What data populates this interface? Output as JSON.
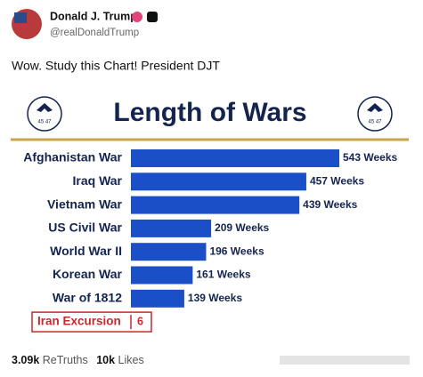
{
  "post": {
    "author": "Donald J. Trump",
    "handle": "@realDonaldTrump",
    "text": "Wow. Study this Chart! President DJT",
    "retruths_count": "3.09k",
    "retruths_label": "ReTruths",
    "likes_count": "10k",
    "likes_label": "Likes"
  },
  "seal_label": "45 47",
  "chart_data": {
    "type": "hbar",
    "title": "Length of Wars",
    "categories": [
      "Afghanistan War",
      "Iraq War",
      "Vietnam War",
      "US Civil War",
      "World War II",
      "Korean War",
      "War of 1812",
      "Iran Excursion"
    ],
    "values": [
      543,
      457,
      439,
      209,
      196,
      161,
      139,
      6
    ],
    "value_labels": [
      "543 Weeks",
      "457 Weeks",
      "439 Weeks",
      "209 Weeks",
      "196 Weeks",
      "161 Weeks",
      "139 Weeks",
      "6"
    ],
    "color": "#1a4fc8",
    "highlight_color": "#c8282d"
  }
}
